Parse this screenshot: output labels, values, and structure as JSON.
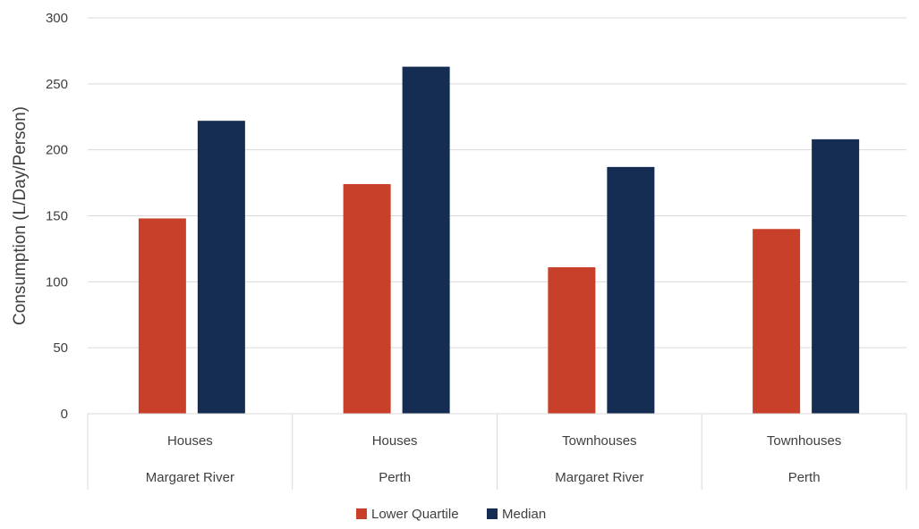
{
  "chart_data": {
    "type": "bar",
    "title": "",
    "ylabel": "Consumption (L/Day/Person)",
    "xlabel": "",
    "ylim": [
      0,
      300
    ],
    "yticks": [
      0,
      50,
      100,
      150,
      200,
      250,
      300
    ],
    "grid": true,
    "legend_position": "bottom",
    "categories": [
      {
        "level1": "Houses",
        "level2": "Margaret River"
      },
      {
        "level1": "Houses",
        "level2": "Perth"
      },
      {
        "level1": "Townhouses",
        "level2": "Margaret River"
      },
      {
        "level1": "Townhouses",
        "level2": "Perth"
      }
    ],
    "series": [
      {
        "name": "Lower Quartile",
        "color": "#c9402a",
        "values": [
          148,
          174,
          111,
          140
        ]
      },
      {
        "name": "Median",
        "color": "#152c53",
        "values": [
          222,
          263,
          187,
          208
        ]
      }
    ]
  }
}
